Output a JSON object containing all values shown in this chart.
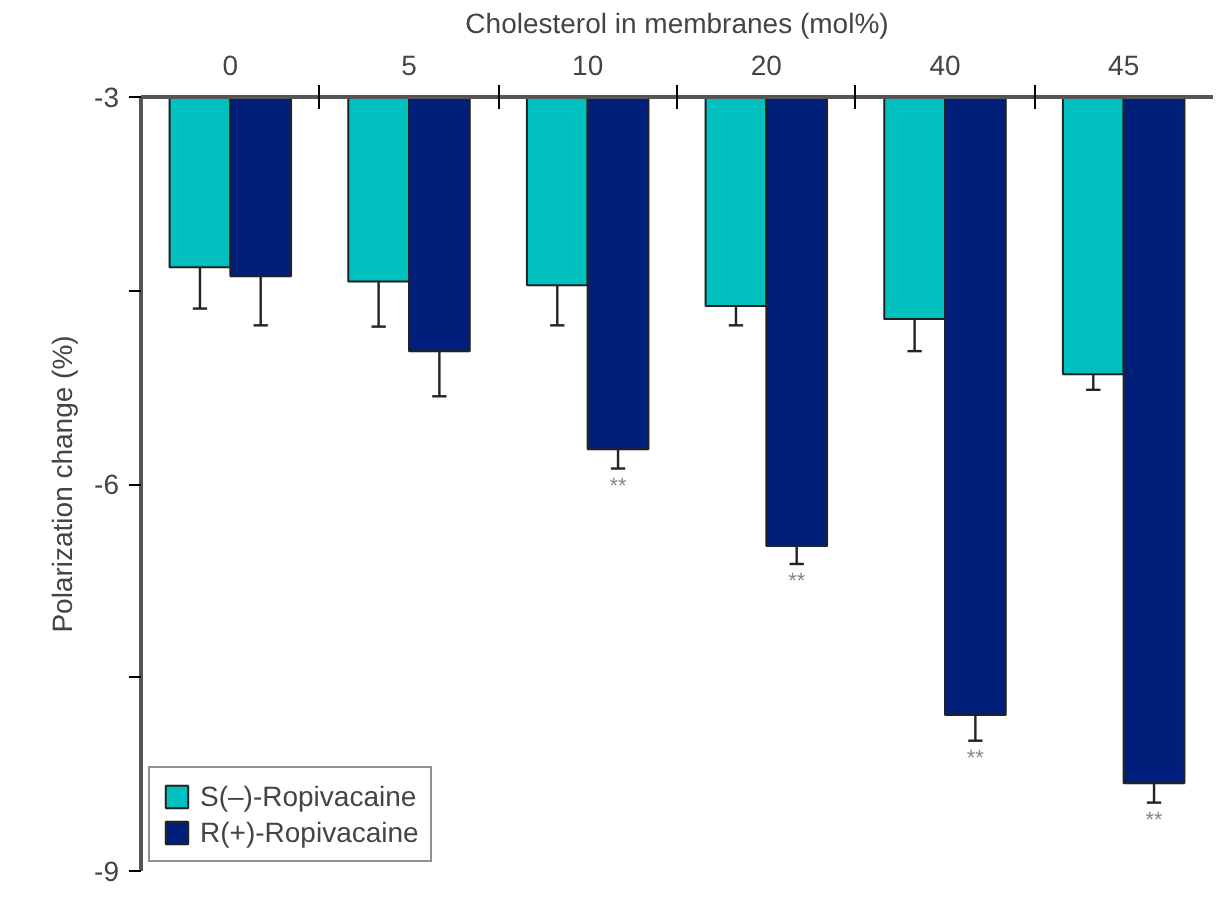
{
  "chart_data": {
    "type": "bar",
    "xlabel": "Cholesterol in membranes (mol%)",
    "ylabel": "Polarization change (%)",
    "categories": [
      "0",
      "5",
      "10",
      "20",
      "40",
      "45"
    ],
    "ylim": [
      -9,
      -3
    ],
    "yticks": [
      -3,
      {
        "value": -4.5,
        "label": null
      },
      -6,
      {
        "value": -7.5,
        "label": null
      },
      -9
    ],
    "grid": false,
    "legend": "bottom left",
    "series": [
      {
        "name": "S(–)-Ropivacaine",
        "color": "#00c0c0",
        "values": [
          -4.32,
          -4.43,
          -4.46,
          -4.62,
          -4.72,
          -5.15
        ],
        "errors": [
          [
            -4.64,
            -4.32
          ],
          [
            -4.78,
            -4.43
          ],
          [
            -4.77,
            -4.46
          ],
          [
            -4.77,
            -4.62
          ],
          [
            -4.97,
            -4.72
          ],
          [
            -5.27,
            -5.15
          ]
        ]
      },
      {
        "name": "R(+)-Ropivacaine",
        "color": "#001f7a",
        "values": [
          -4.39,
          -4.97,
          -5.73,
          -6.48,
          -7.79,
          -8.32
        ],
        "errors": [
          [
            -4.77,
            -4.39
          ],
          [
            -5.32,
            -4.97
          ],
          [
            -5.88,
            -5.73
          ],
          [
            -6.62,
            -6.48
          ],
          [
            -7.99,
            -7.79
          ],
          [
            -8.47,
            -8.32
          ]
        ]
      }
    ],
    "annotations": [
      {
        "text": "**",
        "x": "10",
        "y": -5.73
      },
      {
        "text": "**",
        "x": "20",
        "y": -6.48
      },
      {
        "text": "**",
        "x": "40",
        "y": -7.79
      },
      {
        "text": "**",
        "x": "45",
        "y": -8.32
      }
    ]
  }
}
